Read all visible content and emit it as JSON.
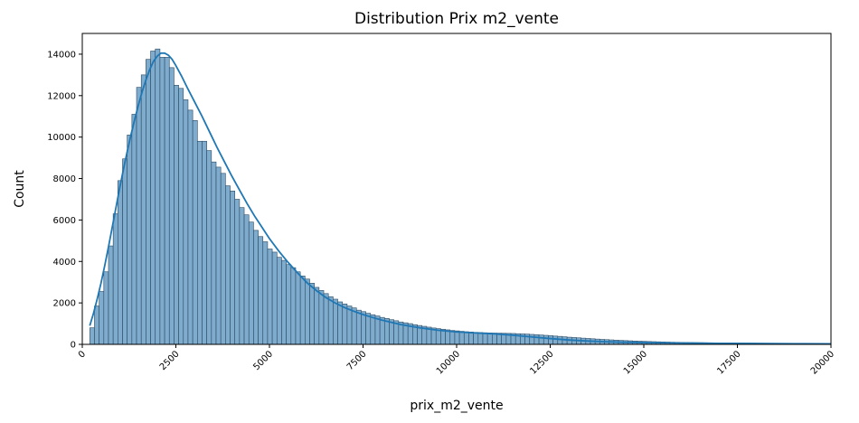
{
  "chart_data": {
    "type": "bar",
    "title": "Distribution Prix m2_vente",
    "xlabel": "prix_m2_vente",
    "ylabel": "Count",
    "xlim": [
      0,
      20000
    ],
    "ylim": [
      0,
      15000
    ],
    "x_ticks": [
      0,
      2500,
      5000,
      7500,
      10000,
      12500,
      15000,
      17500,
      20000
    ],
    "y_ticks": [
      0,
      2000,
      4000,
      6000,
      8000,
      10000,
      12000,
      14000
    ],
    "x_tick_labels": [
      "0",
      "2500",
      "5000",
      "7500",
      "10000",
      "12500",
      "15000",
      "17500",
      "20000"
    ],
    "y_tick_labels": [
      "0",
      "2000",
      "4000",
      "6000",
      "8000",
      "10000",
      "12000",
      "14000"
    ],
    "bin_start": 200,
    "bin_width": 125,
    "counts": [
      800,
      1850,
      2550,
      3500,
      4750,
      6300,
      7900,
      8950,
      10100,
      11100,
      12400,
      13000,
      13750,
      14150,
      14250,
      13850,
      13850,
      13350,
      12500,
      12350,
      11800,
      11300,
      10800,
      9800,
      9800,
      9350,
      8800,
      8550,
      8250,
      7650,
      7400,
      7000,
      6600,
      6250,
      5900,
      5500,
      5200,
      4950,
      4600,
      4450,
      4200,
      4050,
      3850,
      3700,
      3500,
      3300,
      3150,
      2950,
      2750,
      2600,
      2450,
      2300,
      2180,
      2050,
      1950,
      1850,
      1760,
      1650,
      1580,
      1500,
      1430,
      1370,
      1300,
      1250,
      1190,
      1140,
      1080,
      1040,
      1000,
      950,
      910,
      870,
      830,
      790,
      760,
      730,
      700,
      670,
      650,
      630,
      610,
      595,
      580,
      570,
      560,
      550,
      545,
      540,
      535,
      530,
      525,
      515,
      505,
      495,
      480,
      465,
      450,
      435,
      420,
      400,
      385,
      365,
      345,
      330,
      315,
      300,
      285,
      270,
      255,
      240,
      228,
      216,
      204,
      193,
      182,
      172,
      162,
      153,
      145,
      137,
      130,
      123,
      117,
      111,
      105,
      100,
      96,
      92,
      88,
      85,
      82,
      79,
      76,
      73,
      71,
      69,
      67,
      65,
      63,
      61,
      59,
      57,
      55,
      53,
      51,
      49,
      47,
      45,
      43,
      41,
      40,
      38,
      37,
      36,
      35
    ],
    "kde": {
      "x": [
        200,
        300,
        400,
        500,
        600,
        700,
        800,
        900,
        1000,
        1100,
        1200,
        1300,
        1400,
        1500,
        1600,
        1700,
        1800,
        1900,
        2000,
        2100,
        2200,
        2300,
        2400,
        2500,
        2650,
        2800,
        3000,
        3200,
        3400,
        3600,
        3800,
        4000,
        4200,
        4400,
        4600,
        4800,
        5000,
        5250,
        5500,
        5750,
        6000,
        6250,
        6500,
        6750,
        7000,
        7250,
        7500,
        7750,
        8000,
        8500,
        9000,
        9500,
        10000,
        10500,
        11000,
        11500,
        12000,
        12500,
        13000,
        13500,
        14000,
        14500,
        15000,
        16000,
        17000,
        18000,
        19000,
        20000
      ],
      "y": [
        900,
        1500,
        2200,
        2950,
        3800,
        4700,
        5650,
        6600,
        7550,
        8450,
        9300,
        10100,
        10850,
        11550,
        12200,
        12750,
        13250,
        13650,
        13900,
        14050,
        14050,
        13950,
        13750,
        13450,
        12950,
        12400,
        11700,
        11000,
        10250,
        9500,
        8800,
        8100,
        7450,
        6800,
        6200,
        5650,
        5100,
        4500,
        3950,
        3450,
        2980,
        2600,
        2270,
        2000,
        1780,
        1600,
        1440,
        1300,
        1170,
        960,
        800,
        680,
        600,
        550,
        510,
        440,
        360,
        280,
        210,
        160,
        125,
        100,
        85,
        65,
        50,
        40,
        33,
        28
      ]
    },
    "colors": {
      "bar_fill": "#7fabcd",
      "bar_edge": "#2a4a63",
      "kde_line": "#1f77b4"
    },
    "grid": false,
    "legend": "none"
  }
}
